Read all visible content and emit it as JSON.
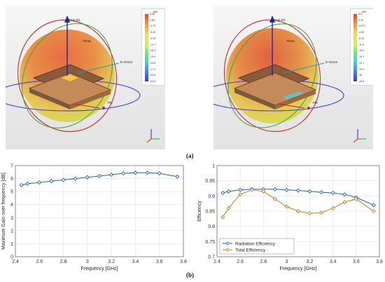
{
  "top_label": "(a)",
  "bottom_label": "(b)",
  "pattern_left": {
    "unit": "dBi",
    "ticks": [
      "5.48",
      "1.85",
      "-1.79",
      "-5.42",
      "-9.05",
      "-12.7",
      "-16.3",
      "-19.9",
      "-23.6",
      "-27.2",
      "-30.8",
      "-34.5"
    ],
    "labels": {
      "prop": "Prop.Dir.",
      "theta": "Theta",
      "evector": "E-Vector",
      "phi": "Phi"
    }
  },
  "pattern_right": {
    "unit": "dBi",
    "ticks": [
      "6.4",
      "2.76",
      "-0.877",
      "-4.52",
      "-8.15",
      "-11.8",
      "-15.4",
      "-19.1",
      "-22.7",
      "-26.3",
      "-30",
      "-33.6"
    ],
    "labels": {
      "prop": "Prop.Dir.",
      "theta": "Theta",
      "evector": "E-Vector",
      "phi": "Phi"
    }
  },
  "chart_data": [
    {
      "type": "line",
      "xlabel": "Frequency [GHz]",
      "ylabel": "Maximum Gain over frequency [dB]",
      "xlim": [
        2.4,
        3.8
      ],
      "ylim": [
        0,
        7
      ],
      "xticks": [
        "2.4",
        "2.6",
        "2.8",
        "3",
        "3.2",
        "3.4",
        "3.6",
        "3.8"
      ],
      "yticks": [
        "0",
        "1",
        "2",
        "3",
        "4",
        "5",
        "6",
        "7"
      ],
      "grid": true,
      "series": [
        {
          "color": "#1f5fc8",
          "marker": "diamond",
          "x": [
            2.45,
            2.5,
            2.6,
            2.7,
            2.8,
            2.9,
            3.0,
            3.1,
            3.2,
            3.3,
            3.4,
            3.5,
            3.6,
            3.75
          ],
          "y": [
            5.5,
            5.6,
            5.7,
            5.8,
            5.9,
            6.0,
            6.1,
            6.2,
            6.3,
            6.4,
            6.45,
            6.45,
            6.4,
            6.15
          ]
        }
      ]
    },
    {
      "type": "line",
      "xlabel": "Frequency [GHz]",
      "ylabel": "Efficiency",
      "xlim": [
        2.4,
        3.8
      ],
      "ylim": [
        0.7,
        1.0
      ],
      "xticks": [
        "2.4",
        "2.6",
        "2.8",
        "3",
        "3.2",
        "3.4",
        "3.6",
        "3.8"
      ],
      "yticks": [
        "0.7",
        "0.75",
        "0.8",
        "0.85",
        "0.9",
        "0.95",
        "1"
      ],
      "grid": true,
      "legend_position": "bottom-left",
      "series": [
        {
          "name": "Radiation Efficiency",
          "color": "#1f5fc8",
          "marker": "diamond",
          "x": [
            2.45,
            2.5,
            2.6,
            2.7,
            2.8,
            2.9,
            3.0,
            3.1,
            3.2,
            3.3,
            3.4,
            3.5,
            3.6,
            3.75
          ],
          "y": [
            0.91,
            0.915,
            0.92,
            0.922,
            0.922,
            0.922,
            0.92,
            0.918,
            0.915,
            0.912,
            0.91,
            0.905,
            0.895,
            0.87
          ]
        },
        {
          "name": "Total Efficiency",
          "color": "#d07a1c",
          "marker": "diamond",
          "x": [
            2.45,
            2.5,
            2.6,
            2.7,
            2.8,
            2.9,
            3.0,
            3.1,
            3.2,
            3.3,
            3.4,
            3.5,
            3.6,
            3.75
          ],
          "y": [
            0.83,
            0.86,
            0.905,
            0.92,
            0.915,
            0.89,
            0.865,
            0.85,
            0.843,
            0.845,
            0.86,
            0.88,
            0.89,
            0.85
          ]
        }
      ]
    }
  ]
}
